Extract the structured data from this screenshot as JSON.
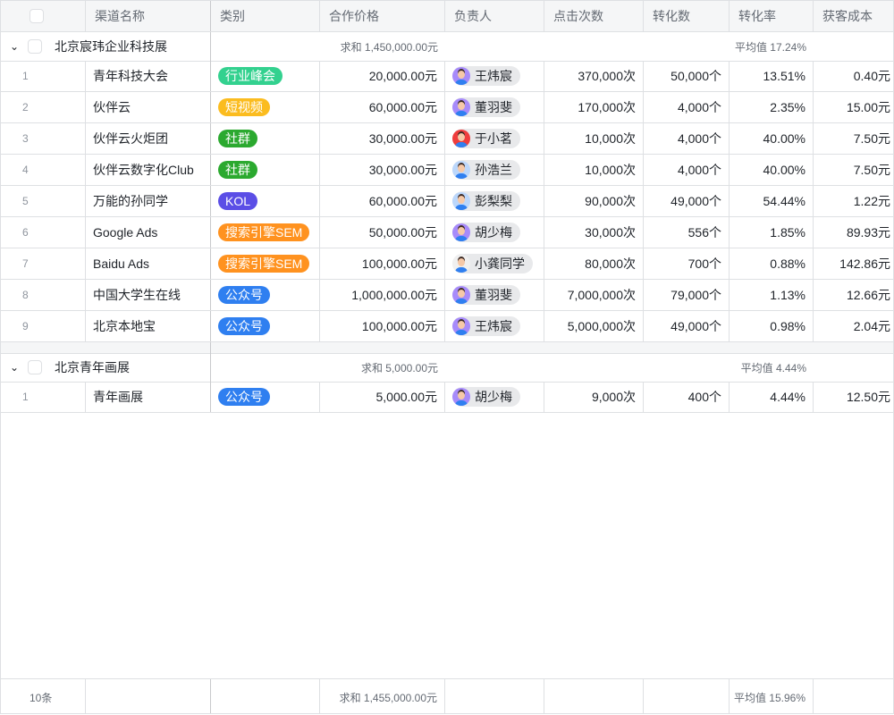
{
  "columns": [
    "渠道名称",
    "类别",
    "合作价格",
    "负责人",
    "点击次数",
    "转化数",
    "转化率",
    "获客成本"
  ],
  "groups": [
    {
      "title": "北京宸玮企业科技展",
      "price_summary": "求和 1,450,000.00元",
      "rate_summary": "平均值 17.24%",
      "rows": [
        {
          "index": "1",
          "name": "青年科技大会",
          "category": "行业峰会",
          "category_color": "#33d18f",
          "price": "20,000.00元",
          "owner": "王炜宸",
          "avatar_color": "#a78bfa",
          "clicks": "370,000次",
          "conversions": "50,000个",
          "rate": "13.51%",
          "cost": "0.40元"
        },
        {
          "index": "2",
          "name": "伙伴云",
          "category": "短视频",
          "category_color": "#fbbc1f",
          "price": "60,000.00元",
          "owner": "董羽斐",
          "avatar_color": "#a78bfa",
          "clicks": "170,000次",
          "conversions": "4,000个",
          "rate": "2.35%",
          "cost": "15.00元"
        },
        {
          "index": "3",
          "name": "伙伴云火炬团",
          "category": "社群",
          "category_color": "#2ba92f",
          "price": "30,000.00元",
          "owner": "于小茗",
          "avatar_color": "#ef3d3d",
          "clicks": "10,000次",
          "conversions": "4,000个",
          "rate": "40.00%",
          "cost": "7.50元"
        },
        {
          "index": "4",
          "name": "伙伴云数字化Club",
          "category": "社群",
          "category_color": "#2ba92f",
          "price": "30,000.00元",
          "owner": "孙浩兰",
          "avatar_color": "#bcd7fb",
          "clicks": "10,000次",
          "conversions": "4,000个",
          "rate": "40.00%",
          "cost": "7.50元"
        },
        {
          "index": "5",
          "name": "万能的孙同学",
          "category": "KOL",
          "category_color": "#5b4ee6",
          "price": "60,000.00元",
          "owner": "彭梨梨",
          "avatar_color": "#bcd7fb",
          "clicks": "90,000次",
          "conversions": "49,000个",
          "rate": "54.44%",
          "cost": "1.22元"
        },
        {
          "index": "6",
          "name": "Google Ads",
          "category": "搜索引擎SEM",
          "category_color": "#ff921f",
          "price": "50,000.00元",
          "owner": "胡少梅",
          "avatar_color": "#a78bfa",
          "clicks": "30,000次",
          "conversions": "556个",
          "rate": "1.85%",
          "cost": "89.93元"
        },
        {
          "index": "7",
          "name": "Baidu Ads",
          "category": "搜索引擎SEM",
          "category_color": "#ff921f",
          "price": "100,000.00元",
          "owner": "小龚同学",
          "avatar_color": "#f0f0f0",
          "clicks": "80,000次",
          "conversions": "700个",
          "rate": "0.88%",
          "cost": "142.86元"
        },
        {
          "index": "8",
          "name": "中国大学生在线",
          "category": "公众号",
          "category_color": "#2f7ff0",
          "price": "1,000,000.00元",
          "owner": "董羽斐",
          "avatar_color": "#a78bfa",
          "clicks": "7,000,000次",
          "conversions": "79,000个",
          "rate": "1.13%",
          "cost": "12.66元"
        },
        {
          "index": "9",
          "name": "北京本地宝",
          "category": "公众号",
          "category_color": "#2f7ff0",
          "price": "100,000.00元",
          "owner": "王炜宸",
          "avatar_color": "#a78bfa",
          "clicks": "5,000,000次",
          "conversions": "49,000个",
          "rate": "0.98%",
          "cost": "2.04元"
        }
      ]
    },
    {
      "title": "北京青年画展",
      "price_summary": "求和 5,000.00元",
      "rate_summary": "平均值 4.44%",
      "rows": [
        {
          "index": "1",
          "name": "青年画展",
          "category": "公众号",
          "category_color": "#2f7ff0",
          "price": "5,000.00元",
          "owner": "胡少梅",
          "avatar_color": "#a78bfa",
          "clicks": "9,000次",
          "conversions": "400个",
          "rate": "4.44%",
          "cost": "12.50元"
        }
      ]
    }
  ],
  "footer": {
    "count": "10条",
    "price_summary": "求和 1,455,000.00元",
    "rate_summary": "平均值 15.96%"
  }
}
